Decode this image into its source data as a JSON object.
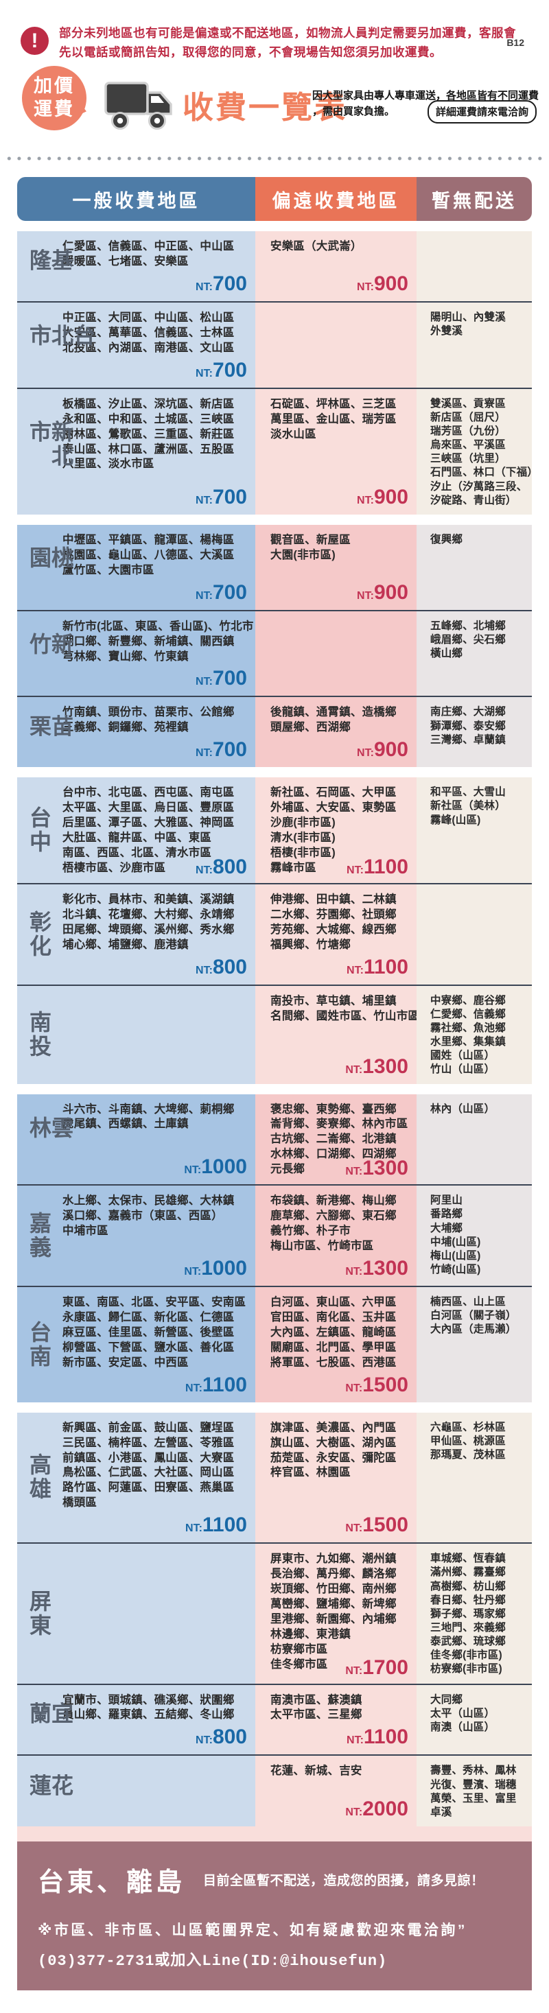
{
  "page": {
    "code": "B12"
  },
  "warning": {
    "text": "部分未列地區也有可能是偏遠或不配送地區，如物流人員判定需要另加運費，客服會先以電話或簡訊告知，取得您的同意，不會現場告知您須另加收運費。"
  },
  "title_section": {
    "bubble_line1": "加價",
    "bubble_line2": "運費",
    "title": "收費一覽表",
    "desc_line1": "因大型家具由專人專車運送，各地區皆有不同運費",
    "desc_line2": "，需由買家負擔。",
    "pill": "詳細運費請來電洽詢"
  },
  "table": {
    "price_prefix": "NT:",
    "headers": [
      {
        "label": "一般收費地區"
      },
      {
        "label": "偏遠收費地區"
      },
      {
        "label": "暫無配送"
      }
    ],
    "blocks": [
      {
        "tint": "light",
        "rows": [
          {
            "label": "基隆",
            "general": {
              "lines": [
                "仁愛區、信義區、中正區、中山區",
                "暖暖區、七堵區、安樂區"
              ],
              "price": "700"
            },
            "remote": {
              "lines": [
                "安樂區（大武崙）"
              ],
              "price": "900"
            },
            "no_delivery": {
              "lines": []
            }
          },
          {
            "label": "台北市",
            "general": {
              "lines": [
                "中正區、大同區、中山區、松山區",
                "大安區、萬華區、信義區、士林區",
                "北投區、內湖區、南港區、文山區"
              ],
              "price": "700"
            },
            "remote": {
              "lines": []
            },
            "no_delivery": {
              "lines": [
                "陽明山、內雙溪",
                "外雙溪"
              ]
            }
          },
          {
            "label": "新北市",
            "general": {
              "lines": [
                "板橋區、汐止區、深坑區、新店區",
                "永和區、中和區、土城區、三峽區",
                "樹林區、鶯歌區、三重區、新莊區",
                "泰山區、林口區、蘆洲區、五股區",
                "八里區、淡水市區"
              ],
              "price": "700"
            },
            "remote": {
              "lines": [
                "石碇區、坪林區、三芝區",
                "萬里區、金山區、瑞芳區",
                "淡水山區"
              ],
              "price": "900"
            },
            "no_delivery": {
              "lines": [
                "雙溪區、貢寮區",
                "新店區（屈尺）",
                "瑞芳區（九份）",
                "烏來區、平溪區",
                "三峽區（坑里）",
                "石門區、林口（下福）",
                "汐止（汐萬路三段、",
                "汐碇路、青山街）"
              ]
            }
          }
        ]
      },
      {
        "tint": "dark",
        "rows": [
          {
            "label": "桃園",
            "general": {
              "lines": [
                "中壢區、平鎮區、龍潭區、楊梅區",
                "桃園區、龜山區、八德區、大溪區",
                "蘆竹區、大園市區"
              ],
              "price": "700"
            },
            "remote": {
              "lines": [
                "觀音區、新屋區",
                "大園(非市區)"
              ],
              "price": "900"
            },
            "no_delivery": {
              "lines": [
                "復興鄉"
              ]
            }
          },
          {
            "label": "新竹",
            "general": {
              "lines": [
                "新竹市(北區、東區、香山區)、竹北市",
                "湖口鄉、新豐鄉、新埔鎮、關西鎮",
                "芎林鄉、寶山鄉、竹東鎮"
              ],
              "price": "700"
            },
            "remote": {
              "lines": []
            },
            "no_delivery": {
              "lines": [
                "五峰鄉、北埔鄉",
                "峨眉鄉、尖石鄉",
                "橫山鄉"
              ]
            }
          },
          {
            "label": "苗栗",
            "general": {
              "lines": [
                "竹南鎮、頭份市、苗栗市、公館鄉",
                "三義鄉、銅鑼鄉、苑裡鎮"
              ],
              "price": "700"
            },
            "remote": {
              "lines": [
                "後龍鎮、通霄鎮、造橋鄉",
                "頭屋鄉、西湖鄉"
              ],
              "price": "900"
            },
            "no_delivery": {
              "lines": [
                "南庄鄉、大湖鄉",
                "獅潭鄉、泰安鄉",
                "三灣鄉、卓蘭鎮"
              ]
            }
          }
        ]
      },
      {
        "tint": "light",
        "rows": [
          {
            "label": "台中",
            "general": {
              "lines": [
                "台中市、北屯區、西屯區、南屯區",
                "太平區、大里區、烏日區、豐原區",
                "后里區、潭子區、大雅區、神岡區",
                "大肚區、龍井區、中區、東區",
                "南區、西區、北區、清水市區",
                "梧棲市區、沙鹿市區"
              ],
              "price": "800",
              "price_inline": true
            },
            "remote": {
              "lines": [
                "新社區、石岡區、大甲區",
                "外埔區、大安區、東勢區",
                "沙鹿(非市區)",
                "清水(非市區)",
                "梧棲(非市區)",
                "霧峰市區"
              ],
              "price": "1100",
              "price_inline": true
            },
            "no_delivery": {
              "lines": [
                "和平區、大雪山",
                "新社區（美林）",
                "霧峰(山區)"
              ]
            }
          },
          {
            "label": "彰化",
            "general": {
              "lines": [
                "彰化市、員林市、和美鎮、溪湖鎮",
                "北斗鎮、花壇鄉、大村鄉、永靖鄉",
                "田尾鄉、埤頭鄉、溪州鄉、秀水鄉",
                "埔心鄉、埔鹽鄉、鹿港鎮"
              ],
              "price": "800"
            },
            "remote": {
              "lines": [
                "伸港鄉、田中鎮、二林鎮",
                "二水鄉、芬園鄉、社頭鄉",
                "芳苑鄉、大城鄉、線西鄉",
                "福興鄉、竹塘鄉"
              ],
              "price": "1100"
            },
            "no_delivery": {
              "lines": []
            }
          },
          {
            "label": "南投",
            "general": {
              "lines": []
            },
            "remote": {
              "lines": [
                "南投市、草屯鎮、埔里鎮",
                "名間鄉、國姓市區、竹山市區"
              ],
              "price": "1300"
            },
            "no_delivery": {
              "lines": [
                "中寮鄉、鹿谷鄉",
                "仁愛鄉、信義鄉",
                "霧社鄉、魚池鄉",
                "水里鄉、集集鎮",
                "國姓（山區）",
                "竹山（山區）"
              ]
            }
          }
        ]
      },
      {
        "tint": "dark",
        "rows": [
          {
            "label": "雲林",
            "general": {
              "lines": [
                "斗六市、斗南鎮、大埤鄉、莿桐鄉",
                "虎尾鎮、西螺鎮、土庫鎮"
              ],
              "price": "1000"
            },
            "remote": {
              "lines": [
                "褒忠鄉、東勢鄉、臺西鄉",
                "崙背鄉、麥寮鄉、林內市區",
                "古坑鄉、二崙鄉、北港鎮",
                "水林鄉、口湖鄉、四湖鄉",
                "元長鄉"
              ],
              "price": "1300",
              "price_inline": true
            },
            "no_delivery": {
              "lines": [
                "林內（山區）"
              ]
            }
          },
          {
            "label": "嘉義",
            "general": {
              "lines": [
                "水上鄉、太保市、民雄鄉、大林鎮",
                "溪口鄉、嘉義市（東區、西區）",
                "中埔市區"
              ],
              "price": "1000"
            },
            "remote": {
              "lines": [
                "布袋鎮、新港鄉、梅山鄉",
                "鹿草鄉、六腳鄉、東石鄉",
                "義竹鄉、朴子市",
                "梅山市區、竹崎市區"
              ],
              "price": "1300"
            },
            "no_delivery": {
              "lines": [
                "阿里山",
                "番路鄉",
                "大埔鄉",
                "中埔(山區)",
                "梅山(山區)",
                "竹崎(山區)"
              ]
            }
          },
          {
            "label": "台南",
            "general": {
              "lines": [
                "東區、南區、北區、安平區、安南區",
                "永康區、歸仁區、新化區、仁德區",
                "麻豆區、佳里區、新營區、後壁區",
                "柳營區、下營區、鹽水區、善化區",
                "新市區、安定區、中西區"
              ],
              "price": "1100"
            },
            "remote": {
              "lines": [
                "白河區、東山區、六甲區",
                "官田區、南化區、玉井區",
                "大內區、左鎮區、龍崎區",
                "關廟區、北門區、學甲區",
                "將軍區、七股區、西港區"
              ],
              "price": "1500"
            },
            "no_delivery": {
              "lines": [
                "楠西區、山上區",
                "白河區（關子嶺）",
                "大內區（走馬瀨）"
              ]
            }
          }
        ]
      },
      {
        "tint": "light",
        "rows": [
          {
            "label": "高雄",
            "general": {
              "lines": [
                "新興區、前金區、鼓山區、鹽埕區",
                "三民區、楠梓區、左營區、苓雅區",
                "前鎮區、小港區、鳳山區、大寮區",
                "鳥松區、仁武區、大社區、岡山區",
                "路竹區、阿蓮區、田寮區、燕巢區",
                "橋頭區"
              ],
              "price": "1100"
            },
            "remote": {
              "lines": [
                "旗津區、美濃區、內門區",
                "旗山區、大樹區、湖內區",
                "茄萣區、永安區、彌陀區",
                "梓官區、林園區"
              ],
              "price": "1500"
            },
            "no_delivery": {
              "lines": [
                "六龜區、杉林區",
                "甲仙區、桃源區",
                "那瑪夏、茂林區"
              ]
            }
          },
          {
            "label": "屏東",
            "general": {
              "lines": []
            },
            "remote": {
              "lines": [
                "屏東市、九如鄉、潮州鎮",
                "長治鄉、萬丹鄉、麟洛鄉",
                "崁頂鄉、竹田鄉、南州鄉",
                "萬巒鄉、鹽埔鄉、新埤鄉",
                "里港鄉、新園鄉、內埔鄉",
                "林邊鄉、東港鎮",
                "枋寮鄉市區",
                "佳冬鄉市區"
              ],
              "price": "1700",
              "price_inline": true
            },
            "no_delivery": {
              "lines": [
                "車城鄉、恆春鎮",
                "滿州鄉、霧臺鄉",
                "高樹鄉、枋山鄉",
                "春日鄉、牡丹鄉",
                "獅子鄉、瑪家鄉",
                "三地門、來義鄉",
                "泰武鄉、琉球鄉",
                "佳冬鄉(非市區)",
                "枋寮鄉(非市區)"
              ]
            }
          },
          {
            "label": "宜蘭",
            "general": {
              "lines": [
                "宜蘭市、頭城鎮、礁溪鄉、狀圍鄉",
                "員山鄉、羅東鎮、五結鄉、冬山鄉"
              ],
              "price": "800"
            },
            "remote": {
              "lines": [
                "南澳市區、蘇澳鎮",
                "太平市區、三星鄉"
              ],
              "price": "1100"
            },
            "no_delivery": {
              "lines": [
                "大同鄉",
                "太平（山區）",
                "南澳（山區）"
              ]
            }
          },
          {
            "label": "花蓮",
            "general": {
              "lines": []
            },
            "remote": {
              "lines": [
                "花蓮、新城、吉安"
              ],
              "price": "2000"
            },
            "no_delivery": {
              "lines": [
                "壽豐、秀林、鳳林",
                "光復、豐濱、瑞穗",
                "萬榮、玉里、富里",
                "卓溪"
              ]
            }
          }
        ]
      }
    ]
  },
  "footer": {
    "title": "台東、離島",
    "note": "目前全區暫不配送，造成您的困擾，請多見諒！",
    "line2": "※市區、非市區、山區範圍界定、如有疑慮歡迎來電洽詢”",
    "line3": "(03)377-2731或加入Line(ID:@ihousefun)"
  },
  "colors": {
    "warning_red": "#bd2c45",
    "bubble_orange": "#ee8168",
    "title_orange": "#f0805e",
    "header_blue": "#4e7ca7",
    "header_orange": "#e97457",
    "header_mauve": "#9c6e75",
    "col1_light": "#ccdbec",
    "col1_dark": "#a7c4e3",
    "col2_light": "#f9dedb",
    "col2_dark": "#f5c9c9",
    "col3_light": "#f3ede5",
    "col3_dark": "#e9e5e6",
    "price_blue": "#1968a6",
    "price_red": "#c23354",
    "footer_mauve": "#a1727b"
  }
}
